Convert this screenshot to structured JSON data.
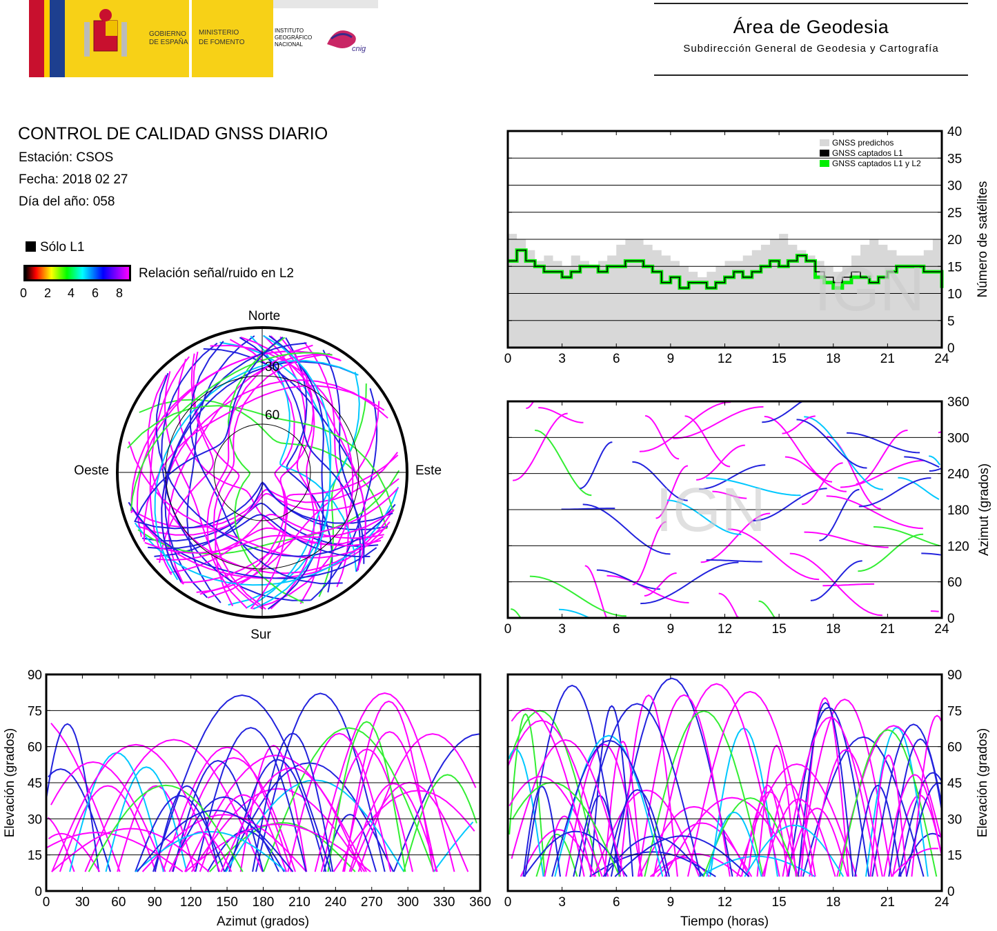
{
  "header": {
    "gov_line1": "GOBIERNO",
    "gov_line2": "DE ESPAÑA",
    "min_line1": "MINISTERIO",
    "min_line2": "DE FOMENTO",
    "ign_line1": "INSTITUTO",
    "ign_line2": "GEOGRÁFICO",
    "ign_line3": "NACIONAL",
    "cnig": "cnig",
    "area_title": "Área de Geodesia",
    "area_subtitle": "Subdirección General de Geodesia y Cartografía"
  },
  "report": {
    "title": "CONTROL DE CALIDAD GNSS DIARIO",
    "station": "Estación: CSOS",
    "date": "Fecha: 2018 02 27",
    "doy": "Día del año: 058"
  },
  "legend": {
    "l1_only": "Sólo L1",
    "snr_label": "Relación señal/ruido en L2",
    "snr_ticks": [
      "0",
      "2",
      "4",
      "6",
      "8"
    ]
  },
  "colors": {
    "predicted": "#d8d8d8",
    "l1": "#000000",
    "l1l2": "#00ee00",
    "magenta": "#ff00ff",
    "blue": "#2222dd",
    "cyan": "#00c8ff",
    "green": "#33ee33"
  },
  "watermark": "IGN",
  "chart_data": [
    {
      "type": "area",
      "id": "satellites",
      "ylabel": "Número de satélites",
      "xlim": [
        0,
        24
      ],
      "ylim": [
        0,
        40
      ],
      "xticks": [
        "0",
        "3",
        "6",
        "9",
        "12",
        "15",
        "18",
        "21",
        "24"
      ],
      "yticks": [
        "0",
        "5",
        "10",
        "15",
        "20",
        "25",
        "30",
        "35",
        "40"
      ],
      "grid": true,
      "legend_position": "top-right",
      "legend": [
        "GNSS predichos",
        "GNSS captados L1",
        "GNSS captados L1 y L2"
      ],
      "x": [
        0,
        0.5,
        1,
        1.5,
        2,
        2.5,
        3,
        3.5,
        4,
        4.5,
        5,
        5.5,
        6,
        6.5,
        7,
        7.5,
        8,
        8.5,
        9,
        9.5,
        10,
        10.5,
        11,
        11.5,
        12,
        12.5,
        13,
        13.5,
        14,
        14.5,
        15,
        15.5,
        16,
        16.5,
        17,
        17.5,
        18,
        18.5,
        19,
        19.5,
        20,
        20.5,
        21,
        21.5,
        22,
        22.5,
        23,
        23.5,
        24
      ],
      "series": [
        {
          "name": "GNSS predichos",
          "values": [
            21,
            20,
            18,
            16,
            17,
            16,
            15,
            17,
            16,
            15,
            16,
            17,
            19,
            20,
            20,
            19,
            18,
            17,
            16,
            15,
            14,
            13,
            14,
            15,
            16,
            16,
            17,
            18,
            19,
            20,
            21,
            19,
            18,
            17,
            16,
            15,
            14,
            15,
            17,
            19,
            20,
            19,
            18,
            17,
            17,
            17,
            18,
            20,
            19
          ]
        },
        {
          "name": "GNSS captados L1",
          "values": [
            16,
            18,
            16,
            15,
            14,
            14,
            13,
            14,
            15,
            15,
            14,
            15,
            15,
            16,
            16,
            15,
            14,
            12,
            13,
            11,
            12,
            12,
            11,
            12,
            13,
            14,
            13,
            14,
            15,
            16,
            15,
            16,
            17,
            16,
            14,
            13,
            12,
            13,
            14,
            13,
            12,
            13,
            14,
            15,
            15,
            15,
            14,
            14,
            12
          ]
        },
        {
          "name": "GNSS captados L1 y L2",
          "values": [
            16,
            18,
            16,
            15,
            14,
            14,
            13,
            14,
            15,
            15,
            14,
            15,
            15,
            16,
            16,
            15,
            14,
            12,
            13,
            11,
            12,
            12,
            11,
            12,
            13,
            14,
            13,
            14,
            15,
            16,
            15,
            16,
            17,
            16,
            13,
            12,
            11,
            12,
            13,
            13,
            12,
            13,
            14,
            15,
            15,
            15,
            14,
            14,
            11
          ]
        }
      ]
    },
    {
      "type": "scatter",
      "id": "skyplot",
      "polar": true,
      "directions": {
        "north": "Norte",
        "south": "Sur",
        "east": "Este",
        "west": "Oeste"
      },
      "rings": [
        "30",
        "60"
      ],
      "color_scale": "Relación señal/ruido en L2"
    },
    {
      "type": "line",
      "id": "azimuth-time",
      "ylabel": "Azimut (grados)",
      "xlim": [
        0,
        24
      ],
      "ylim": [
        0,
        360
      ],
      "xticks": [
        "0",
        "3",
        "6",
        "9",
        "12",
        "15",
        "18",
        "21",
        "24"
      ],
      "yticks": [
        "0",
        "60",
        "120",
        "180",
        "240",
        "300",
        "360"
      ],
      "grid": true
    },
    {
      "type": "line",
      "id": "elevation-azimuth",
      "xlabel": "Azimut (grados)",
      "ylabel": "Elevación (grados)",
      "xlim": [
        0,
        360
      ],
      "ylim": [
        0,
        90
      ],
      "xticks": [
        "0",
        "30",
        "60",
        "90",
        "120",
        "150",
        "180",
        "210",
        "240",
        "270",
        "300",
        "330",
        "360"
      ],
      "yticks": [
        "0",
        "15",
        "30",
        "45",
        "60",
        "75",
        "90"
      ],
      "grid": true
    },
    {
      "type": "line",
      "id": "elevation-time",
      "xlabel": "Tiempo (horas)",
      "ylabel": "Elevación (grados)",
      "xlim": [
        0,
        24
      ],
      "ylim": [
        0,
        90
      ],
      "xticks": [
        "0",
        "3",
        "6",
        "9",
        "12",
        "15",
        "18",
        "21",
        "24"
      ],
      "yticks": [
        "0",
        "15",
        "30",
        "45",
        "60",
        "75",
        "90"
      ],
      "grid": true
    }
  ]
}
